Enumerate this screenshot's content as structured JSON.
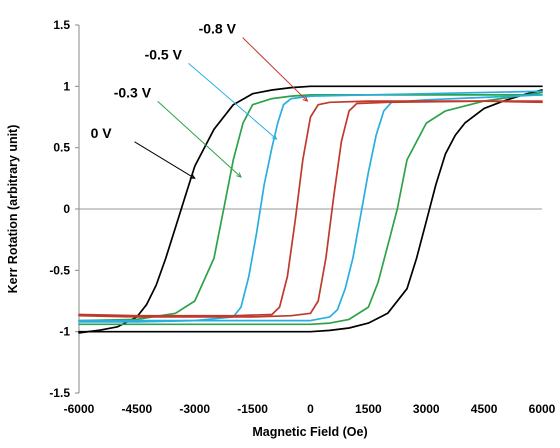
{
  "chart_data": {
    "type": "line",
    "title": "",
    "xlabel": "Magnetic Field (Oe)",
    "ylabel": "Kerr Rotation (arbitrary unit)",
    "xlim": [
      -6000,
      6000
    ],
    "ylim": [
      -1.5,
      1.5
    ],
    "xticks": [
      "-6000",
      "-4500",
      "-3000",
      "-1500",
      "0",
      "1500",
      "3000",
      "4500",
      "6000"
    ],
    "yticks": [
      "1.5",
      "1",
      "0.5",
      "0",
      "-0.5",
      "-1",
      "-1.5"
    ],
    "grid": false,
    "legend": "none",
    "series": [
      {
        "color": "#000000",
        "descending": {
          "x": [
            6000,
            5000,
            4000,
            2000,
            1000,
            0,
            -500,
            -1000,
            -1500,
            -2000,
            -2500,
            -3000,
            -3250,
            -3500,
            -3750,
            -4000,
            -4250,
            -4500,
            -5000,
            -5500,
            -6000
          ],
          "y": [
            1.0,
            1.0,
            1.0,
            1.0,
            1.0,
            1.0,
            0.99,
            0.97,
            0.94,
            0.85,
            0.65,
            0.35,
            0.1,
            -0.15,
            -0.4,
            -0.62,
            -0.78,
            -0.88,
            -0.96,
            -0.99,
            -1.01
          ]
        },
        "ascending": {
          "x": [
            -6000,
            -5000,
            -4000,
            -2000,
            0,
            500,
            1000,
            1500,
            2000,
            2500,
            2750,
            3000,
            3250,
            3500,
            3750,
            4000,
            4500,
            5000,
            5500,
            6000
          ],
          "y": [
            -1.0,
            -1.0,
            -1.0,
            -1.0,
            -1.0,
            -0.99,
            -0.97,
            -0.93,
            -0.85,
            -0.65,
            -0.4,
            -0.1,
            0.2,
            0.45,
            0.6,
            0.7,
            0.82,
            0.88,
            0.93,
            0.97
          ]
        }
      },
      {
        "color": "#2ea24a",
        "descending": {
          "x": [
            6000,
            4500,
            3000,
            1500,
            0,
            -500,
            -1000,
            -1500,
            -1750,
            -2000,
            -2250,
            -2500,
            -3000,
            -3500,
            -4500,
            -6000
          ],
          "y": [
            0.93,
            0.93,
            0.93,
            0.93,
            0.93,
            0.92,
            0.9,
            0.85,
            0.7,
            0.4,
            0.0,
            -0.4,
            -0.75,
            -0.85,
            -0.9,
            -0.91
          ]
        },
        "ascending": {
          "x": [
            -6000,
            -4500,
            -3000,
            -1500,
            0,
            500,
            1000,
            1500,
            1750,
            2000,
            2250,
            2500,
            3000,
            3500,
            4500,
            6000
          ],
          "y": [
            -0.94,
            -0.94,
            -0.94,
            -0.94,
            -0.94,
            -0.93,
            -0.9,
            -0.8,
            -0.6,
            -0.3,
            0.0,
            0.4,
            0.7,
            0.8,
            0.88,
            0.95
          ]
        }
      },
      {
        "color": "#2aaee0",
        "descending": {
          "x": [
            6000,
            4500,
            3000,
            1500,
            0,
            -500,
            -700,
            -850,
            -1000,
            -1200,
            -1400,
            -1600,
            -1800,
            -2000,
            -3000,
            -4500,
            -6000
          ],
          "y": [
            0.96,
            0.95,
            0.94,
            0.93,
            0.92,
            0.9,
            0.85,
            0.7,
            0.5,
            0.2,
            -0.2,
            -0.55,
            -0.8,
            -0.88,
            -0.91,
            -0.92,
            -0.92
          ]
        },
        "ascending": {
          "x": [
            -6000,
            -4500,
            -3000,
            -1500,
            0,
            500,
            700,
            900,
            1100,
            1300,
            1500,
            1700,
            1900,
            2100,
            3000,
            4500,
            6000
          ],
          "y": [
            -0.91,
            -0.91,
            -0.91,
            -0.91,
            -0.91,
            -0.88,
            -0.82,
            -0.65,
            -0.4,
            -0.05,
            0.3,
            0.6,
            0.8,
            0.87,
            0.89,
            0.91,
            0.93
          ]
        }
      },
      {
        "color": "#c0392b",
        "descending": {
          "x": [
            6000,
            4500,
            3000,
            1500,
            500,
            200,
            0,
            -200,
            -400,
            -600,
            -800,
            -1000,
            -2000,
            -4500,
            -6000
          ],
          "y": [
            0.87,
            0.88,
            0.88,
            0.88,
            0.87,
            0.85,
            0.75,
            0.4,
            -0.1,
            -0.55,
            -0.8,
            -0.86,
            -0.87,
            -0.87,
            -0.86
          ]
        },
        "ascending": {
          "x": [
            -6000,
            -4500,
            -3000,
            -1500,
            -500,
            0,
            200,
            400,
            600,
            800,
            1000,
            1200,
            2000,
            4500,
            6000
          ],
          "y": [
            -0.87,
            -0.88,
            -0.88,
            -0.88,
            -0.87,
            -0.85,
            -0.75,
            -0.4,
            0.1,
            0.55,
            0.8,
            0.86,
            0.87,
            0.88,
            0.88
          ]
        }
      }
    ],
    "annotations": [
      {
        "text": "0 V",
        "x": -5700,
        "y": 0.58,
        "arrow_to": [
          -3000,
          0.25
        ]
      },
      {
        "text": "-0.3 V",
        "x": -5100,
        "y": 0.91,
        "arrow_to": [
          -1800,
          0.26
        ]
      },
      {
        "text": "-0.5 V",
        "x": -4300,
        "y": 1.22,
        "arrow_to": [
          -880,
          0.57
        ]
      },
      {
        "text": "-0.8 V",
        "x": -2900,
        "y": 1.43,
        "arrow_to": [
          -80,
          0.88
        ]
      }
    ]
  }
}
